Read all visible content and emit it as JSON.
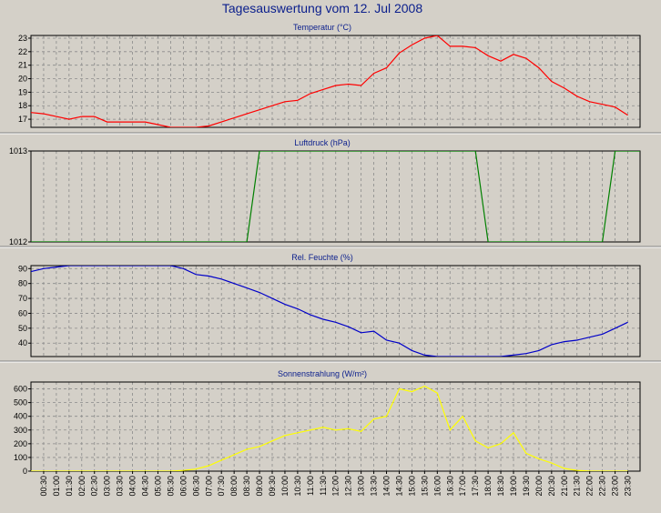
{
  "title": "Tagesauswertung vom 12. Jul 2008",
  "x_ticks": [
    "00:30",
    "01:00",
    "01:30",
    "02:00",
    "02:30",
    "03:00",
    "03:30",
    "04:00",
    "04:30",
    "05:00",
    "05:30",
    "06:00",
    "06:30",
    "07:00",
    "07:30",
    "08:00",
    "08:30",
    "09:00",
    "09:30",
    "10:00",
    "10:30",
    "11:00",
    "11:30",
    "12:00",
    "12:30",
    "13:00",
    "13:30",
    "14:00",
    "14:30",
    "15:00",
    "15:30",
    "16:00",
    "16:30",
    "17:00",
    "17:30",
    "18:00",
    "18:30",
    "19:00",
    "19:30",
    "20:00",
    "20:30",
    "21:00",
    "21:30",
    "22:00",
    "22:30",
    "23:00",
    "23:30"
  ],
  "colors": {
    "background": "#d4d0c8",
    "plot_bg": "#d4d0c8",
    "grid": "#8a8a8a",
    "axis": "#000000",
    "title_text": "#0a1e8c"
  },
  "chart_data": [
    {
      "type": "line",
      "title": "Temperatur (°C)",
      "color": "#ff0000",
      "ylim": [
        16.4,
        23.2
      ],
      "yticks": [
        17,
        18,
        19,
        20,
        21,
        22,
        23
      ],
      "grid": true,
      "x": [
        "00:00",
        "00:30",
        "01:00",
        "01:30",
        "02:00",
        "02:30",
        "03:00",
        "03:30",
        "04:00",
        "04:30",
        "05:00",
        "05:30",
        "06:00",
        "06:30",
        "07:00",
        "07:30",
        "08:00",
        "08:30",
        "09:00",
        "09:30",
        "10:00",
        "10:30",
        "11:00",
        "11:30",
        "12:00",
        "12:30",
        "13:00",
        "13:30",
        "14:00",
        "14:30",
        "15:00",
        "15:30",
        "16:00",
        "16:30",
        "17:00",
        "17:30",
        "18:00",
        "18:30",
        "19:00",
        "19:30",
        "20:00",
        "20:30",
        "21:00",
        "21:30",
        "22:00",
        "22:30",
        "23:00",
        "23:30"
      ],
      "values": [
        17.5,
        17.4,
        17.2,
        17.0,
        17.2,
        17.2,
        16.8,
        16.8,
        16.8,
        16.8,
        16.6,
        16.4,
        16.4,
        16.4,
        16.5,
        16.8,
        17.1,
        17.4,
        17.7,
        18.0,
        18.3,
        18.4,
        18.9,
        19.2,
        19.5,
        19.6,
        19.5,
        20.4,
        20.8,
        21.9,
        22.5,
        23.0,
        23.2,
        22.4,
        22.4,
        22.3,
        21.7,
        21.3,
        21.8,
        21.5,
        20.8,
        19.8,
        19.3,
        18.7,
        18.3,
        18.1,
        17.9,
        17.3
      ]
    },
    {
      "type": "line",
      "title": "Luftdruck (hPa)",
      "color": "#008000",
      "ylim": [
        1012,
        1013
      ],
      "yticks": [
        1012,
        1013
      ],
      "grid": true,
      "x": [
        "00:00",
        "08:30",
        "09:00",
        "17:30",
        "18:00",
        "22:30",
        "23:00",
        "23:59"
      ],
      "values": [
        1012,
        1012,
        1013,
        1013,
        1012,
        1012,
        1013,
        1013
      ]
    },
    {
      "type": "line",
      "title": "Rel. Feuchte (%)",
      "color": "#0000c8",
      "ylim": [
        31,
        92
      ],
      "yticks": [
        40,
        50,
        60,
        70,
        80,
        90
      ],
      "grid": true,
      "x": [
        "00:00",
        "00:30",
        "01:00",
        "01:30",
        "02:00",
        "02:30",
        "03:00",
        "03:30",
        "04:00",
        "04:30",
        "05:00",
        "05:30",
        "06:00",
        "06:30",
        "07:00",
        "07:30",
        "08:00",
        "08:30",
        "09:00",
        "09:30",
        "10:00",
        "10:30",
        "11:00",
        "11:30",
        "12:00",
        "12:30",
        "13:00",
        "13:30",
        "14:00",
        "14:30",
        "15:00",
        "15:30",
        "16:00",
        "16:30",
        "17:00",
        "17:30",
        "18:00",
        "18:30",
        "19:00",
        "19:30",
        "20:00",
        "20:30",
        "21:00",
        "21:30",
        "22:00",
        "22:30",
        "23:00",
        "23:30"
      ],
      "values": [
        88,
        90,
        91,
        92,
        92,
        92,
        92,
        92,
        92,
        92,
        92,
        92,
        90,
        86,
        85,
        83,
        80,
        77,
        74,
        70,
        66,
        63,
        59,
        56,
        54,
        51,
        47,
        48,
        42,
        40,
        35,
        32,
        31,
        31,
        31,
        31,
        31,
        31,
        32,
        33,
        35,
        39,
        41,
        42,
        44,
        46,
        50,
        54
      ]
    },
    {
      "type": "line",
      "title": "Sonnenstrahlung (W/m²)",
      "color": "#ffff00",
      "ylim": [
        0,
        650
      ],
      "yticks": [
        0,
        100,
        200,
        300,
        400,
        500,
        600
      ],
      "grid": true,
      "x": [
        "00:00",
        "00:30",
        "01:00",
        "01:30",
        "02:00",
        "02:30",
        "03:00",
        "03:30",
        "04:00",
        "04:30",
        "05:00",
        "05:30",
        "06:00",
        "06:30",
        "07:00",
        "07:30",
        "08:00",
        "08:30",
        "09:00",
        "09:30",
        "10:00",
        "10:30",
        "11:00",
        "11:30",
        "12:00",
        "12:30",
        "13:00",
        "13:30",
        "14:00",
        "14:30",
        "15:00",
        "15:30",
        "16:00",
        "16:30",
        "17:00",
        "17:30",
        "18:00",
        "18:30",
        "19:00",
        "19:30",
        "20:00",
        "20:30",
        "21:00",
        "21:30",
        "22:00",
        "22:30",
        "23:00",
        "23:30"
      ],
      "values": [
        0,
        0,
        0,
        0,
        0,
        0,
        0,
        0,
        0,
        0,
        0,
        0,
        5,
        15,
        40,
        80,
        120,
        160,
        180,
        220,
        260,
        280,
        300,
        320,
        300,
        310,
        290,
        380,
        400,
        600,
        580,
        620,
        570,
        300,
        400,
        220,
        170,
        200,
        280,
        130,
        90,
        60,
        20,
        5,
        0,
        0,
        0,
        0
      ]
    }
  ]
}
